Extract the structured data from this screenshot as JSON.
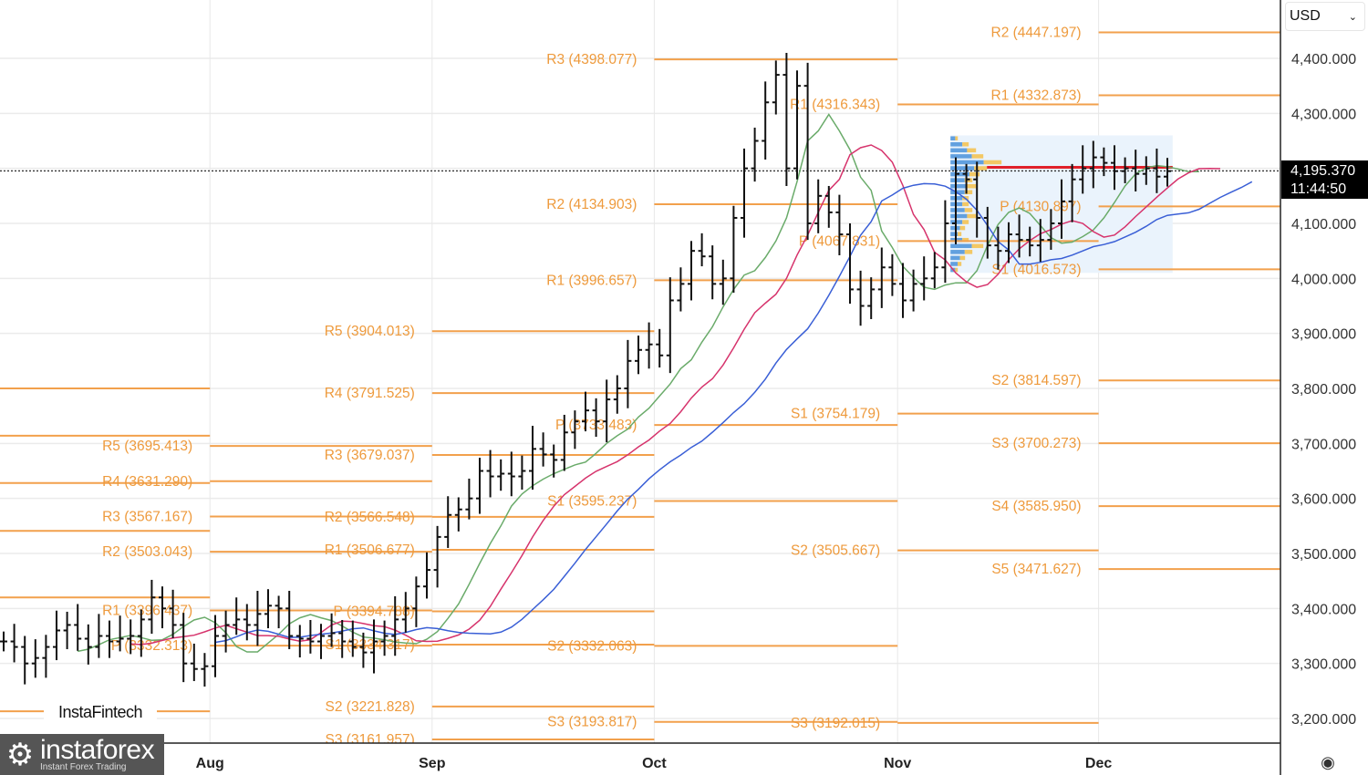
{
  "toolbar": {
    "currency": "USD"
  },
  "current_price": {
    "value": "4,195.370",
    "countdown": "11:44:50",
    "price": 4195.37
  },
  "watermarks": {
    "fintech": "InstaFintech",
    "brand": "instaforex",
    "brand_tagline": "Instant Forex Trading"
  },
  "colors": {
    "pivot": "#f2a04c",
    "label": "#ee9a3c",
    "lips": "#6aab6a",
    "teeth": "#d6336c",
    "jaw": "#3a5fd6",
    "poc": "#e0202a",
    "profile_bg": "#eaf3fc"
  },
  "chart_data": {
    "type": "ohlc",
    "ylim": [
      3150,
      4480
    ],
    "y_ticks": [
      {
        "v": 4400,
        "label": "4,400.000"
      },
      {
        "v": 4300,
        "label": "4,300.000"
      },
      {
        "v": 4100,
        "label": "4,100.000"
      },
      {
        "v": 4000,
        "label": "4,000.000"
      },
      {
        "v": 3900,
        "label": "3,900.000"
      },
      {
        "v": 3800,
        "label": "3,800.000"
      },
      {
        "v": 3700,
        "label": "3,700.000"
      },
      {
        "v": 3600,
        "label": "3,600.000"
      },
      {
        "v": 3500,
        "label": "3,500.000"
      },
      {
        "v": 3400,
        "label": "3,400.000"
      },
      {
        "v": 3300,
        "label": "3,300.000"
      },
      {
        "v": 3200,
        "label": "3,200.000"
      }
    ],
    "x_ticks": [
      {
        "i": 19.5,
        "label": "Aug"
      },
      {
        "i": 40.5,
        "label": "Sep"
      },
      {
        "i": 61.5,
        "label": "Oct"
      },
      {
        "i": 84.5,
        "label": "Nov"
      },
      {
        "i": 103.5,
        "label": "Dec"
      }
    ],
    "closes": [
      3340,
      3330,
      3300,
      3310,
      3330,
      3360,
      3370,
      3345,
      3330,
      3350,
      3340,
      3345,
      3350,
      3380,
      3420,
      3400,
      3370,
      3300,
      3290,
      3295,
      3350,
      3370,
      3380,
      3370,
      3390,
      3405,
      3400,
      3350,
      3345,
      3340,
      3350,
      3355,
      3340,
      3330,
      3320,
      3340,
      3350,
      3380,
      3400,
      3440,
      3470,
      3530,
      3570,
      3580,
      3600,
      3650,
      3640,
      3645,
      3640,
      3650,
      3690,
      3680,
      3670,
      3720,
      3740,
      3760,
      3740,
      3780,
      3800,
      3850,
      3870,
      3880,
      3860,
      3960,
      3990,
      4050,
      4040,
      3990,
      4000,
      4110,
      4200,
      4250,
      4320,
      4370,
      4200,
      4350,
      4100,
      4150,
      4120,
      4080,
      3980,
      3950,
      3980,
      4020,
      3990,
      3960,
      3990,
      4000,
      4020,
      4100,
      4190,
      4180,
      4110,
      4060,
      4050,
      4080,
      4070,
      4060,
      4070,
      4100,
      4140,
      4180,
      4200,
      4220,
      4210,
      4195,
      4200,
      4190,
      4200,
      4185,
      4195
    ],
    "indicators": [
      {
        "name": "lips",
        "period": 5,
        "shift": 3
      },
      {
        "name": "teeth",
        "period": 8,
        "shift": 5
      },
      {
        "name": "jaw",
        "period": 13,
        "shift": 8
      }
    ],
    "unlabeled_levels": {
      "start": -2,
      "end": 19.5,
      "values": [
        3800,
        3714,
        3628,
        3541,
        3420,
        3213
      ]
    },
    "pivot_segments": [
      {
        "start": 19.5,
        "end": 40.5,
        "levels": [
          {
            "label": "R5 (3695.413)",
            "v": 3695.413
          },
          {
            "label": "R4 (3631.290)",
            "v": 3631.29
          },
          {
            "label": "R3 (3567.167)",
            "v": 3567.167
          },
          {
            "label": "R2 (3503.043)",
            "v": 3503.043
          },
          {
            "label": "R1 (3396.437)",
            "v": 3396.437
          },
          {
            "label": "P (3332.313)",
            "v": 3332.313
          }
        ]
      },
      {
        "start": 40.5,
        "end": 61.5,
        "levels": [
          {
            "label": "R5 (3904.013)",
            "v": 3904.013
          },
          {
            "label": "R4 (3791.525)",
            "v": 3791.525
          },
          {
            "label": "R3 (3679.037)",
            "v": 3679.037
          },
          {
            "label": "R2 (3566.548)",
            "v": 3566.548
          },
          {
            "label": "R1 (3506.677)",
            "v": 3506.677
          },
          {
            "label": "P (3394.788)",
            "v": 3394.788
          },
          {
            "label": "S1 (3334.317)",
            "v": 3334.317
          },
          {
            "label": "S2 (3221.828)",
            "v": 3221.828
          },
          {
            "label": "S3 (3161.957)",
            "v": 3161.957
          }
        ]
      },
      {
        "start": 61.5,
        "end": 84.5,
        "levels": [
          {
            "label": "R3 (4398.077)",
            "v": 4398.077
          },
          {
            "label": "R2 (4134.903)",
            "v": 4134.903
          },
          {
            "label": "R1 (3996.657)",
            "v": 3996.657
          },
          {
            "label": "P (3733.483)",
            "v": 3733.483
          },
          {
            "label": "S1 (3595.237)",
            "v": 3595.237
          },
          {
            "label": "S2 (3332.063)",
            "v": 3332.063
          },
          {
            "label": "S3 (3193.817)",
            "v": 3193.817
          }
        ]
      },
      {
        "start": 84.5,
        "end": 103.5,
        "levels": [
          {
            "label": "R1 (4316.343)",
            "v": 4316.343
          },
          {
            "label": "P (4067.831)",
            "v": 4067.831
          },
          {
            "label": "S1 (3754.179)",
            "v": 3754.179
          },
          {
            "label": "S2 (3505.667)",
            "v": 3505.667
          },
          {
            "label": "S3 (3192.015)",
            "v": 3192.015
          }
        ]
      },
      {
        "start": 103.5,
        "end": 121,
        "levels": [
          {
            "label": "R2 (4447.197)",
            "v": 4447.197
          },
          {
            "label": "R1 (4332.873)",
            "v": 4332.873
          },
          {
            "label": "P (4130.897)",
            "v": 4130.897
          },
          {
            "label": "S1 (4016.573)",
            "v": 4016.573
          },
          {
            "label": "S2 (3814.597)",
            "v": 3814.597
          },
          {
            "label": "S3 (3700.273)",
            "v": 3700.273
          },
          {
            "label": "S4 (3585.950)",
            "v": 3585.95
          },
          {
            "label": "S5 (3471.627)",
            "v": 3471.627
          }
        ]
      }
    ],
    "volume_profile": {
      "start": 89.5,
      "end": 110.5,
      "high": 4260,
      "low": 4010,
      "poc": 4202,
      "rows": [
        2,
        5,
        7,
        9,
        14,
        10,
        8,
        6,
        7,
        6,
        5,
        5,
        6,
        7,
        5,
        4,
        3,
        5,
        9,
        6,
        4,
        3,
        2
      ]
    }
  }
}
